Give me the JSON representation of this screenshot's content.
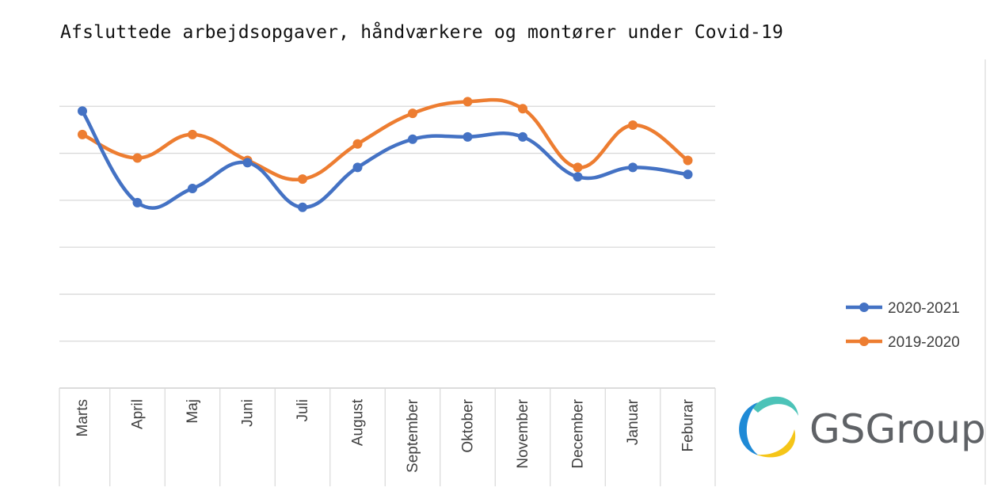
{
  "chart_data": {
    "type": "line",
    "title": "Afsluttede arbejdsopgaver, håndværkere og montører under Covid-19",
    "xlabel": "",
    "ylabel": "",
    "categories": [
      "Marts",
      "April",
      "Maj",
      "Juni",
      "Juli",
      "August",
      "September",
      "Oktober",
      "November",
      "December",
      "Januar",
      "Feburar"
    ],
    "series": [
      {
        "name": "2020-2021",
        "color": "#4472C4",
        "values": [
          5.9,
          3.95,
          4.25,
          4.8,
          3.85,
          4.7,
          5.3,
          5.35,
          5.35,
          4.5,
          4.7,
          4.55
        ]
      },
      {
        "name": "2019-2020",
        "color": "#ED7D31",
        "values": [
          5.4,
          4.9,
          5.4,
          4.85,
          4.45,
          5.2,
          5.85,
          6.1,
          5.95,
          4.7,
          5.6,
          4.85
        ]
      }
    ],
    "ylim": [
      0,
      7
    ],
    "y_ticks_shown": false,
    "grid": true,
    "smooth": true,
    "legend": {
      "placement": "right",
      "entries": [
        "2020-2021",
        "2019-2020"
      ]
    }
  },
  "logo": {
    "text": "GSGroup",
    "colors": [
      "#4cc3b8",
      "#1f8ad6",
      "#f5c518"
    ]
  }
}
